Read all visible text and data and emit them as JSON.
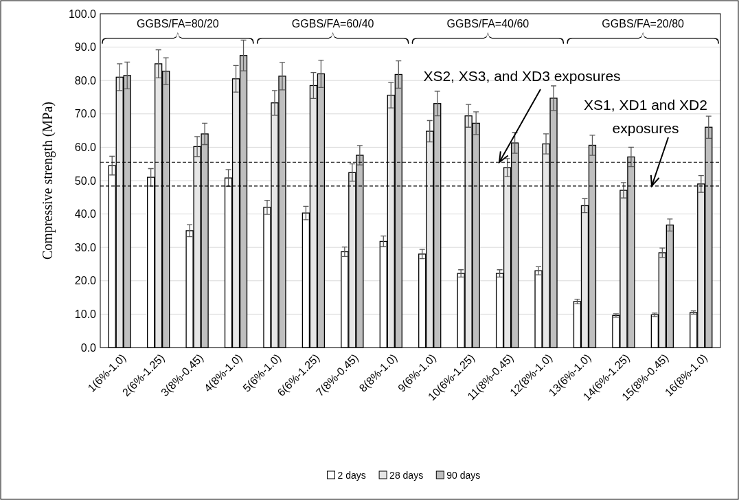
{
  "chart_data": {
    "type": "bar",
    "ylabel": "Compressive strength (MPa)",
    "categories": [
      "1(6%-1.0)",
      "2(6%-1.25)",
      "3(8%-0.45)",
      "4(8%-1.0)",
      "5(6%-1.0)",
      "6(6%-1.25)",
      "7(8%-0.45)",
      "8(8%-1.0)",
      "9(6%-1.0)",
      "10(6%-1.25)",
      "11(8%-0.45)",
      "12(8%-1.0)",
      "13(6%-1.0)",
      "14(6%-1.25)",
      "15(8%-0.45)",
      "16(8%-1.0)"
    ],
    "series": [
      {
        "name": "2 days",
        "color": "#ffffff",
        "values": [
          54.5,
          51,
          35,
          50.8,
          42,
          40.3,
          28.7,
          31.8,
          28,
          22.2,
          22.2,
          23,
          13.8,
          9.6,
          9.8,
          10.5
        ],
        "errors": [
          2.8,
          2.6,
          1.8,
          2.5,
          2.1,
          2,
          1.4,
          1.6,
          1.4,
          1.1,
          1.1,
          1.2,
          0.7,
          0.5,
          0.5,
          0.5
        ]
      },
      {
        "name": "28 days",
        "color": "#e6e6e6",
        "values": [
          81,
          85,
          60.2,
          80.5,
          73.3,
          78.5,
          52.4,
          75.6,
          64.8,
          69.4,
          53.9,
          61,
          42.5,
          47.1,
          28.4,
          49
        ],
        "errors": [
          4,
          4.2,
          3,
          4,
          3.7,
          3.9,
          2.6,
          3.8,
          3.2,
          3.4,
          2.7,
          3,
          2.1,
          2.3,
          1.4,
          2.5
        ]
      },
      {
        "name": "90 days",
        "color": "#bfbfbf",
        "values": [
          81.5,
          82.8,
          64,
          87.5,
          81.3,
          82,
          57.6,
          81.8,
          73.1,
          67.2,
          61.3,
          74.7,
          60.6,
          57.1,
          36.7,
          66
        ],
        "errors": [
          4,
          4,
          3.2,
          4.6,
          4.1,
          4.1,
          2.9,
          4.1,
          3.7,
          3.4,
          3.1,
          3.7,
          3,
          2.9,
          1.8,
          3.3
        ]
      }
    ],
    "ylim": [
      0,
      100
    ],
    "yticks": [
      {
        "value": 0,
        "label": "0.0"
      },
      {
        "value": 10,
        "label": "10.0"
      },
      {
        "value": 20,
        "label": "20.0"
      },
      {
        "value": 30,
        "label": "30.0"
      },
      {
        "value": 40,
        "label": "40.0"
      },
      {
        "value": 50,
        "label": "50.0"
      },
      {
        "value": 60,
        "label": "60.0"
      },
      {
        "value": 70,
        "label": "70.0"
      },
      {
        "value": 80,
        "label": "80.0"
      },
      {
        "value": 90,
        "label": "90.0"
      },
      {
        "value": 100,
        "label": "100.0"
      }
    ],
    "grid": "y",
    "legend": "bottom",
    "ref_lines": [
      {
        "axis": "y",
        "value": 55.5,
        "label": "XS2, XS3, and XD3 exposures",
        "line_style": "dashed",
        "color": "#000000"
      },
      {
        "axis": "y",
        "value": 48.4,
        "label": "XS1, XD1 and XD2 exposures",
        "line_style": "dashed",
        "color": "#000000"
      }
    ],
    "annotations": [
      "GGBS/FA=80/20",
      "GGBS/FA=60/40",
      "GGBS/FA=40/60",
      "GGBS/FA=20/80"
    ]
  }
}
